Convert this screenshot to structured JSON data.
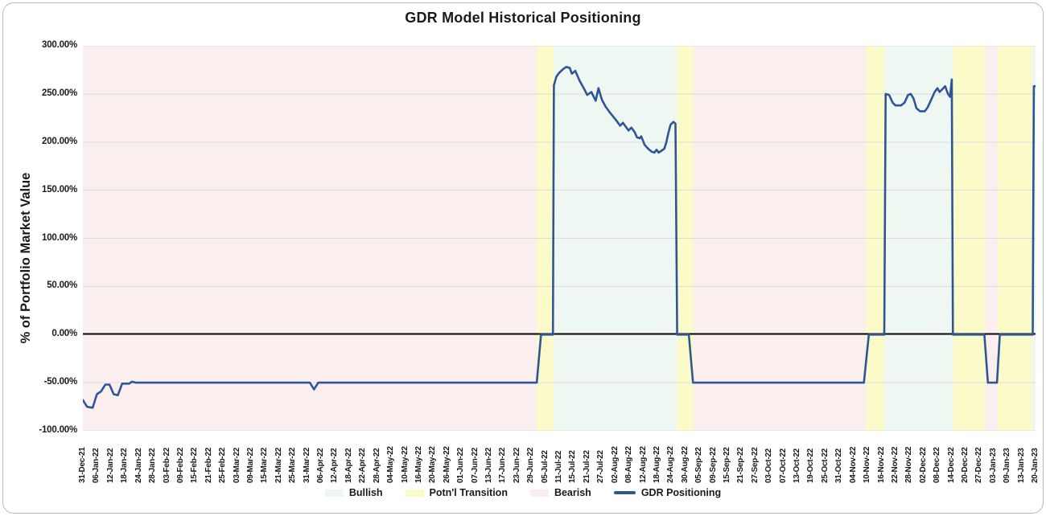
{
  "title": "GDR Model Historical Positioning",
  "y_axis": {
    "title": "% of Portfolio Market Value",
    "tick_labels": [
      "300.00%",
      "250.00%",
      "200.00%",
      "150.00%",
      "100.00%",
      "50.00%",
      "0.00%",
      "-50.00%",
      "-100.00%"
    ],
    "tick_values": [
      300,
      250,
      200,
      150,
      100,
      50,
      0,
      -50,
      -100
    ]
  },
  "colors": {
    "line": "#2f5597",
    "grid": "#dcdcdc",
    "zero_axis": "#000000",
    "bullish": "#eef7f2",
    "transition": "#fbfbca",
    "bearish": "#fbeeee",
    "text": "#1a1a1a",
    "card_border": "#b9b9b9"
  },
  "legend": {
    "items": [
      {
        "label": "Bullish",
        "swatch": "area",
        "color": "#eef7f2"
      },
      {
        "label": "Potn'l Transition",
        "swatch": "area",
        "color": "#fbfbca"
      },
      {
        "label": "Bearish",
        "swatch": "area",
        "color": "#fbeeee"
      },
      {
        "label": "GDR Positioning",
        "swatch": "line",
        "color": "#2f5597"
      }
    ]
  },
  "chart_data": {
    "type": "line",
    "title": "GDR Model Historical Positioning",
    "xlabel": "",
    "ylabel": "% of Portfolio Market Value",
    "ylim": [
      -100,
      300
    ],
    "ytick_step": 50,
    "grid": true,
    "legend_position": "bottom",
    "categories": [
      "31-Dec-21",
      "06-Jan-22",
      "12-Jan-22",
      "18-Jan-22",
      "24-Jan-22",
      "28-Jan-22",
      "03-Feb-22",
      "09-Feb-22",
      "15-Feb-22",
      "21-Feb-22",
      "25-Feb-22",
      "03-Mar-22",
      "09-Mar-22",
      "15-Mar-22",
      "21-Mar-22",
      "25-Mar-22",
      "31-Mar-22",
      "06-Apr-22",
      "12-Apr-22",
      "18-Apr-22",
      "22-Apr-22",
      "28-Apr-22",
      "04-May-22",
      "10-May-22",
      "16-May-22",
      "20-May-22",
      "26-May-22",
      "01-Jun-22",
      "07-Jun-22",
      "13-Jun-22",
      "17-Jun-22",
      "23-Jun-22",
      "29-Jun-22",
      "05-Jul-22",
      "11-Jul-22",
      "15-Jul-22",
      "21-Jul-22",
      "27-Jul-22",
      "02-Aug-22",
      "08-Aug-22",
      "12-Aug-22",
      "18-Aug-22",
      "24-Aug-22",
      "30-Aug-22",
      "05-Sep-22",
      "09-Sep-22",
      "15-Sep-22",
      "21-Sep-22",
      "27-Sep-22",
      "03-Oct-22",
      "07-Oct-22",
      "13-Oct-22",
      "19-Oct-22",
      "25-Oct-22",
      "31-Oct-22",
      "04-Nov-22",
      "10-Nov-22",
      "16-Nov-22",
      "22-Nov-22",
      "28-Nov-22",
      "02-Dec-22",
      "08-Dec-22",
      "14-Dec-22",
      "20-Dec-22",
      "27-Dec-22",
      "03-Jan-23",
      "09-Jan-23",
      "13-Jan-23",
      "20-Jan-23"
    ],
    "background_regions": [
      {
        "label": "Bearish",
        "start": 0,
        "end": 32.4
      },
      {
        "label": "Potn'l Transition",
        "start": 32.4,
        "end": 33.6
      },
      {
        "label": "Bullish",
        "start": 33.6,
        "end": 42.4
      },
      {
        "label": "Potn'l Transition",
        "start": 42.4,
        "end": 43.6
      },
      {
        "label": "Bearish",
        "start": 43.6,
        "end": 55.9
      },
      {
        "label": "Potn'l Transition",
        "start": 55.9,
        "end": 57.2
      },
      {
        "label": "Bullish",
        "start": 57.2,
        "end": 62.1
      },
      {
        "label": "Potn'l Transition",
        "start": 62.1,
        "end": 64.4
      },
      {
        "label": "Bearish",
        "start": 64.4,
        "end": 65.3
      },
      {
        "label": "Potn'l Transition",
        "start": 65.3,
        "end": 67.75
      },
      {
        "label": "Bullish",
        "start": 67.75,
        "end": 68
      }
    ],
    "series": [
      {
        "name": "GDR Positioning",
        "color": "#2f5597",
        "x_unit": "category_index",
        "y_unit": "percent",
        "points": [
          [
            0,
            -68
          ],
          [
            0.3,
            -75
          ],
          [
            0.7,
            -76
          ],
          [
            1,
            -62
          ],
          [
            1.3,
            -59
          ],
          [
            1.6,
            -52
          ],
          [
            1.9,
            -52
          ],
          [
            2.2,
            -62
          ],
          [
            2.5,
            -63
          ],
          [
            2.8,
            -51
          ],
          [
            3.3,
            -51
          ],
          [
            3.5,
            -49
          ],
          [
            3.8,
            -50
          ],
          [
            16.2,
            -50
          ],
          [
            16.5,
            -57
          ],
          [
            16.8,
            -50
          ],
          [
            32.4,
            -50
          ],
          [
            32.7,
            0
          ],
          [
            33.55,
            0
          ],
          [
            33.62,
            259
          ],
          [
            33.8,
            268
          ],
          [
            34,
            272
          ],
          [
            34.3,
            276
          ],
          [
            34.5,
            278
          ],
          [
            34.75,
            277
          ],
          [
            34.9,
            271
          ],
          [
            35.15,
            274
          ],
          [
            35.45,
            264
          ],
          [
            35.75,
            256
          ],
          [
            36,
            249
          ],
          [
            36.3,
            252
          ],
          [
            36.6,
            243
          ],
          [
            36.8,
            256
          ],
          [
            37.05,
            244
          ],
          [
            37.3,
            237
          ],
          [
            37.6,
            231
          ],
          [
            38.1,
            222
          ],
          [
            38.35,
            217
          ],
          [
            38.55,
            220
          ],
          [
            38.75,
            216
          ],
          [
            38.95,
            212
          ],
          [
            39.15,
            215
          ],
          [
            39.4,
            210
          ],
          [
            39.55,
            205
          ],
          [
            39.75,
            204
          ],
          [
            39.85,
            206
          ],
          [
            40.1,
            197
          ],
          [
            40.35,
            193
          ],
          [
            40.6,
            190
          ],
          [
            40.8,
            189
          ],
          [
            40.95,
            192
          ],
          [
            41.1,
            189
          ],
          [
            41.3,
            191
          ],
          [
            41.5,
            193
          ],
          [
            41.65,
            200
          ],
          [
            41.8,
            210
          ],
          [
            41.95,
            218
          ],
          [
            42.15,
            221
          ],
          [
            42.3,
            219
          ],
          [
            42.42,
            0
          ],
          [
            43.25,
            0
          ],
          [
            43.55,
            -50
          ],
          [
            55.75,
            -50
          ],
          [
            56.1,
            0
          ],
          [
            57.2,
            0
          ],
          [
            57.3,
            250
          ],
          [
            57.55,
            249
          ],
          [
            57.8,
            241
          ],
          [
            58,
            238
          ],
          [
            58.4,
            238
          ],
          [
            58.65,
            241
          ],
          [
            58.9,
            249
          ],
          [
            59.1,
            250
          ],
          [
            59.3,
            245
          ],
          [
            59.5,
            235
          ],
          [
            59.75,
            232
          ],
          [
            60.1,
            232
          ],
          [
            60.3,
            236
          ],
          [
            60.55,
            244
          ],
          [
            60.8,
            252
          ],
          [
            61,
            256
          ],
          [
            61.15,
            252
          ],
          [
            61.35,
            255
          ],
          [
            61.55,
            258
          ],
          [
            61.75,
            250
          ],
          [
            61.9,
            247
          ],
          [
            62.02,
            265
          ],
          [
            62.1,
            0
          ],
          [
            64.35,
            0
          ],
          [
            64.6,
            -50
          ],
          [
            65.25,
            -50
          ],
          [
            65.45,
            0
          ],
          [
            67.8,
            0
          ],
          [
            67.88,
            258
          ],
          [
            68,
            258
          ]
        ]
      }
    ]
  }
}
